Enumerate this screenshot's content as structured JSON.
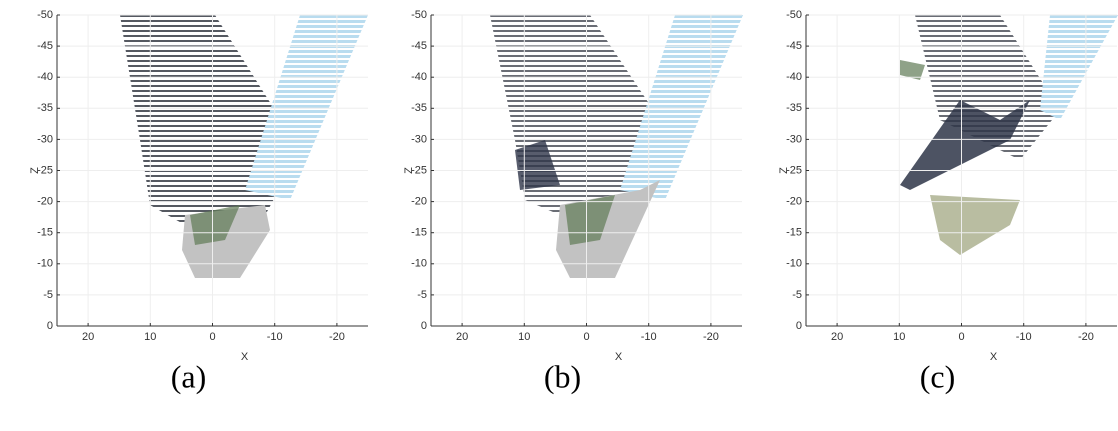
{
  "chart_data": [
    {
      "type": "scatter",
      "caption": "(a)",
      "xlabel": "X",
      "ylabel": "Z",
      "xlim": [
        25,
        -25
      ],
      "ylim": [
        0,
        -50
      ],
      "xticks": [
        20,
        10,
        0,
        -10,
        -20
      ],
      "yticks": [
        0,
        -5,
        -10,
        -15,
        -20,
        -25,
        -30,
        -35,
        -40,
        -45,
        -50
      ],
      "grid": true
    },
    {
      "type": "scatter",
      "caption": "(b)",
      "xlabel": "X",
      "ylabel": "Z",
      "xlim": [
        25,
        -25
      ],
      "ylim": [
        0,
        -50
      ],
      "xticks": [
        20,
        10,
        0,
        -10,
        -20
      ],
      "yticks": [
        0,
        -5,
        -10,
        -15,
        -20,
        -25,
        -30,
        -35,
        -40,
        -45,
        -50
      ],
      "grid": true
    },
    {
      "type": "scatter",
      "caption": "(c)",
      "xlabel": "X",
      "ylabel": "Z",
      "xlim": [
        25,
        -25
      ],
      "ylim": [
        0,
        -50
      ],
      "xticks": [
        20,
        10,
        0,
        -10,
        -20
      ],
      "yticks": [
        0,
        -5,
        -10,
        -15,
        -20,
        -25,
        -30,
        -35,
        -40,
        -45,
        -50
      ],
      "grid": true
    }
  ]
}
